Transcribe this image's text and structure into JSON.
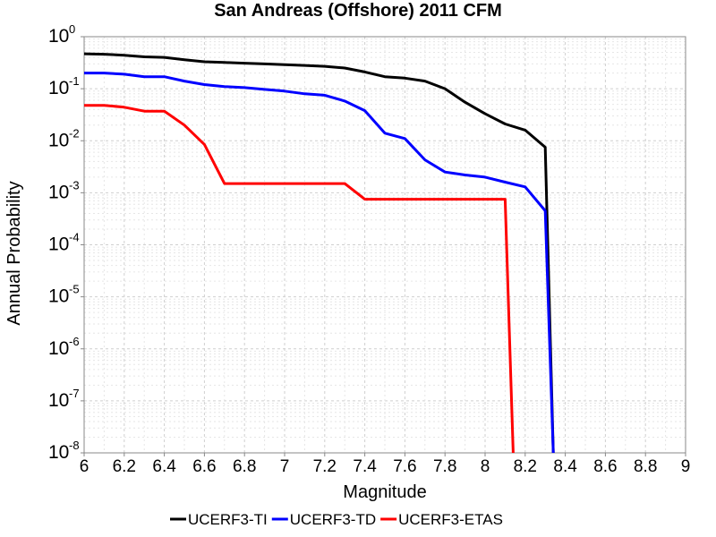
{
  "chart_data": {
    "type": "line",
    "title": "San Andreas (Offshore) 2011 CFM",
    "xlabel": "Magnitude",
    "ylabel": "Annual Probability",
    "xlim": [
      6,
      9
    ],
    "ylim": [
      1e-08,
      1
    ],
    "yscale": "log",
    "grid": true,
    "legend_position": "bottom",
    "x_ticks": [
      "6",
      "6.2",
      "6.4",
      "6.6",
      "6.8",
      "7",
      "7.2",
      "7.4",
      "7.6",
      "7.8",
      "8",
      "8.2",
      "8.4",
      "8.6",
      "8.8",
      "9"
    ],
    "y_ticks": [
      {
        "base": "10",
        "exp": "0"
      },
      {
        "base": "10",
        "exp": "-1"
      },
      {
        "base": "10",
        "exp": "-2"
      },
      {
        "base": "10",
        "exp": "-3"
      },
      {
        "base": "10",
        "exp": "-4"
      },
      {
        "base": "10",
        "exp": "-5"
      },
      {
        "base": "10",
        "exp": "-6"
      },
      {
        "base": "10",
        "exp": "-7"
      },
      {
        "base": "10",
        "exp": "-8"
      }
    ],
    "series": [
      {
        "name": "UCERF3-TI",
        "color": "#000000",
        "x": [
          6.0,
          6.1,
          6.2,
          6.3,
          6.4,
          6.5,
          6.6,
          6.7,
          6.8,
          6.9,
          7.0,
          7.1,
          7.2,
          7.3,
          7.4,
          7.5,
          7.6,
          7.7,
          7.8,
          7.9,
          8.0,
          8.1,
          8.2,
          8.3,
          8.34
        ],
        "y": [
          0.47,
          0.46,
          0.44,
          0.41,
          0.4,
          0.36,
          0.33,
          0.32,
          0.31,
          0.3,
          0.29,
          0.28,
          0.27,
          0.25,
          0.21,
          0.17,
          0.16,
          0.14,
          0.1,
          0.055,
          0.033,
          0.021,
          0.016,
          0.0075,
          1e-08
        ]
      },
      {
        "name": "UCERF3-TD",
        "color": "#0000ff",
        "x": [
          6.0,
          6.1,
          6.2,
          6.3,
          6.4,
          6.5,
          6.6,
          6.7,
          6.8,
          6.9,
          7.0,
          7.1,
          7.2,
          7.3,
          7.4,
          7.5,
          7.6,
          7.7,
          7.8,
          7.9,
          8.0,
          8.1,
          8.2,
          8.3,
          8.34
        ],
        "y": [
          0.2,
          0.2,
          0.19,
          0.17,
          0.17,
          0.14,
          0.12,
          0.11,
          0.105,
          0.097,
          0.09,
          0.08,
          0.075,
          0.058,
          0.038,
          0.014,
          0.011,
          0.0043,
          0.0025,
          0.0022,
          0.002,
          0.0016,
          0.0013,
          0.00045,
          1e-08
        ]
      },
      {
        "name": "UCERF3-ETAS",
        "color": "#ff0000",
        "x": [
          6.0,
          6.1,
          6.2,
          6.3,
          6.4,
          6.5,
          6.6,
          6.7,
          6.8,
          6.9,
          7.0,
          7.1,
          7.2,
          7.3,
          7.4,
          7.5,
          7.6,
          7.7,
          7.8,
          7.9,
          8.0,
          8.1,
          8.14
        ],
        "y": [
          0.048,
          0.048,
          0.044,
          0.037,
          0.037,
          0.02,
          0.0085,
          0.0015,
          0.0015,
          0.0015,
          0.0015,
          0.0015,
          0.0015,
          0.0015,
          0.00075,
          0.00075,
          0.00075,
          0.00075,
          0.00075,
          0.00075,
          0.00075,
          0.00075,
          1e-08
        ]
      }
    ]
  }
}
